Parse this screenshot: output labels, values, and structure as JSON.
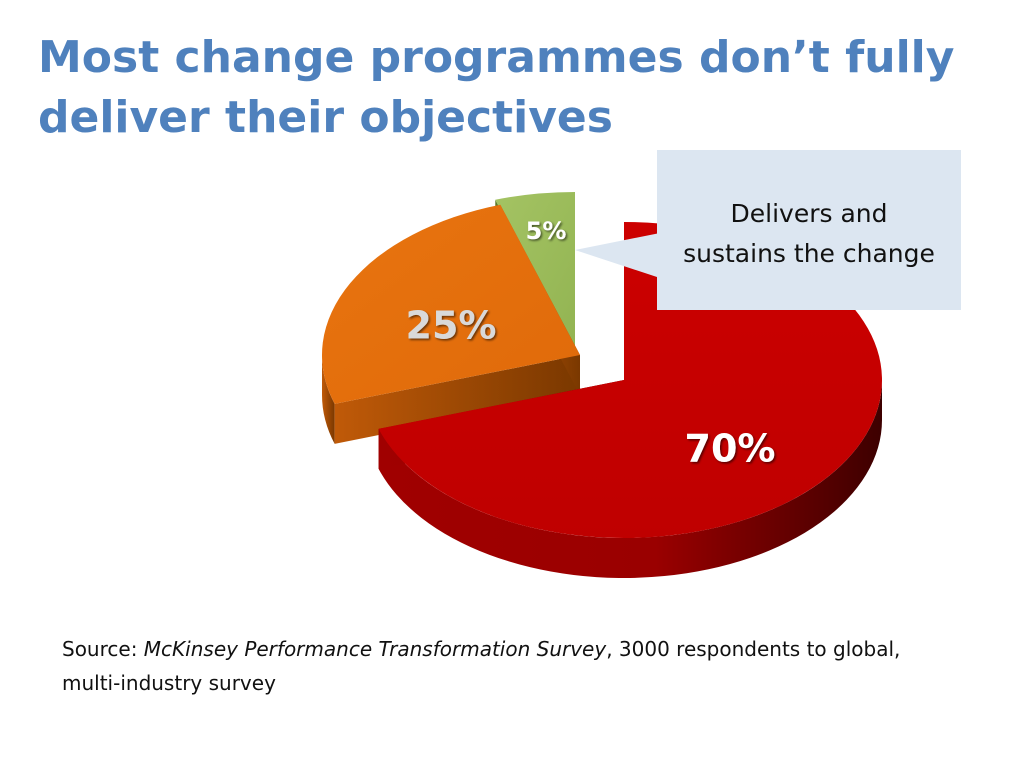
{
  "title": {
    "line1": "Most change programmes don’t fully",
    "line2": "deliver their objectives"
  },
  "callout": {
    "line1": "Delivers and",
    "line2": "sustains the change"
  },
  "source": {
    "prefix": "Source: ",
    "survey_name": "McKinsey Performance Transformation Survey",
    "suffix": ", 3000 respondents to global, multi-industry survey"
  },
  "colors": {
    "title": "#4f81bd",
    "red_slice": "#c00000",
    "orange_slice": "#e36c0a",
    "green_slice": "#9bbb59",
    "callout_bg": "#dce6f1"
  },
  "chart_data": {
    "type": "pie",
    "style": "3d-exploded",
    "title": "",
    "slices": [
      {
        "label": "70%",
        "value": 70,
        "color": "#c00000"
      },
      {
        "label": "25%",
        "value": 25,
        "color": "#e36c0a"
      },
      {
        "label": "5%",
        "value": 5,
        "color": "#9bbb59"
      }
    ]
  }
}
